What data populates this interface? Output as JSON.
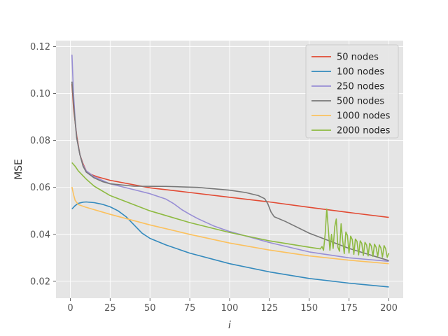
{
  "chart_data": {
    "type": "line",
    "title": "",
    "xlabel": "i",
    "ylabel": "MSE",
    "xlim": [
      -9,
      209
    ],
    "ylim": [
      0.0128,
      0.1225
    ],
    "xticks": [
      0,
      25,
      50,
      75,
      100,
      125,
      150,
      175,
      200
    ],
    "yticks": [
      0.02,
      0.04,
      0.06,
      0.08,
      0.1,
      0.12
    ],
    "ytick_labels": [
      "0.02",
      "0.04",
      "0.06",
      "0.08",
      "0.10",
      "0.12"
    ],
    "grid": true,
    "legend_position": "top-right",
    "series": [
      {
        "name": "50 nodes",
        "color": "#E24A33",
        "points": [
          [
            1,
            0.104
          ],
          [
            2,
            0.094
          ],
          [
            4,
            0.082
          ],
          [
            6,
            0.074
          ],
          [
            8,
            0.07
          ],
          [
            10,
            0.067
          ],
          [
            13,
            0.0655
          ],
          [
            17,
            0.0645
          ],
          [
            25,
            0.063
          ],
          [
            50,
            0.0598
          ],
          [
            75,
            0.0578
          ],
          [
            100,
            0.0558
          ],
          [
            125,
            0.0538
          ],
          [
            150,
            0.0515
          ],
          [
            175,
            0.0493
          ],
          [
            200,
            0.0472
          ]
        ]
      },
      {
        "name": "100 nodes",
        "color": "#348ABD",
        "points": [
          [
            1,
            0.0508
          ],
          [
            3,
            0.0522
          ],
          [
            5,
            0.0532
          ],
          [
            8,
            0.0537
          ],
          [
            10,
            0.0538
          ],
          [
            15,
            0.0535
          ],
          [
            20,
            0.0528
          ],
          [
            25,
            0.0517
          ],
          [
            30,
            0.05
          ],
          [
            35,
            0.0475
          ],
          [
            40,
            0.044
          ],
          [
            45,
            0.0405
          ],
          [
            50,
            0.0383
          ],
          [
            60,
            0.0355
          ],
          [
            75,
            0.032
          ],
          [
            100,
            0.0275
          ],
          [
            125,
            0.024
          ],
          [
            150,
            0.0212
          ],
          [
            175,
            0.0192
          ],
          [
            200,
            0.0176
          ]
        ]
      },
      {
        "name": "250 nodes",
        "color": "#988ED5",
        "points": [
          [
            1,
            0.1165
          ],
          [
            2,
            0.1
          ],
          [
            3,
            0.089
          ],
          [
            4,
            0.081
          ],
          [
            6,
            0.074
          ],
          [
            8,
            0.0695
          ],
          [
            10,
            0.067
          ],
          [
            15,
            0.0645
          ],
          [
            20,
            0.063
          ],
          [
            25,
            0.0615
          ],
          [
            40,
            0.059
          ],
          [
            50,
            0.0573
          ],
          [
            60,
            0.055
          ],
          [
            65,
            0.053
          ],
          [
            70,
            0.0505
          ],
          [
            75,
            0.0485
          ],
          [
            80,
            0.0467
          ],
          [
            90,
            0.0436
          ],
          [
            100,
            0.0412
          ],
          [
            125,
            0.0365
          ],
          [
            150,
            0.0325
          ],
          [
            175,
            0.03
          ],
          [
            200,
            0.0285
          ]
        ]
      },
      {
        "name": "500 nodes",
        "color": "#777777",
        "points": [
          [
            1,
            0.105
          ],
          [
            2,
            0.096
          ],
          [
            3,
            0.088
          ],
          [
            4,
            0.081
          ],
          [
            6,
            0.074
          ],
          [
            8,
            0.069
          ],
          [
            10,
            0.0665
          ],
          [
            15,
            0.064
          ],
          [
            20,
            0.0625
          ],
          [
            25,
            0.0615
          ],
          [
            40,
            0.0605
          ],
          [
            60,
            0.0604
          ],
          [
            80,
            0.06
          ],
          [
            100,
            0.0588
          ],
          [
            110,
            0.0578
          ],
          [
            118,
            0.0565
          ],
          [
            122,
            0.0552
          ],
          [
            124,
            0.053
          ],
          [
            126,
            0.0495
          ],
          [
            128,
            0.0475
          ],
          [
            135,
            0.0455
          ],
          [
            150,
            0.0405
          ],
          [
            175,
            0.034
          ],
          [
            200,
            0.0288
          ]
        ]
      },
      {
        "name": "1000 nodes",
        "color": "#FBC15E",
        "points": [
          [
            1,
            0.0602
          ],
          [
            2,
            0.057
          ],
          [
            3,
            0.0545
          ],
          [
            5,
            0.0527
          ],
          [
            10,
            0.0515
          ],
          [
            25,
            0.0485
          ],
          [
            50,
            0.044
          ],
          [
            75,
            0.04
          ],
          [
            100,
            0.0363
          ],
          [
            125,
            0.0333
          ],
          [
            150,
            0.0308
          ],
          [
            175,
            0.029
          ],
          [
            200,
            0.0275
          ]
        ]
      },
      {
        "name": "2000 nodes",
        "color": "#8EBA42",
        "points": [
          [
            1,
            0.0705
          ],
          [
            3,
            0.069
          ],
          [
            5,
            0.067
          ],
          [
            10,
            0.0635
          ],
          [
            15,
            0.0605
          ],
          [
            25,
            0.0565
          ],
          [
            50,
            0.05
          ],
          [
            75,
            0.045
          ],
          [
            100,
            0.0408
          ],
          [
            125,
            0.0372
          ],
          [
            150,
            0.0345
          ],
          [
            157,
            0.0338
          ],
          [
            158,
            0.0348
          ],
          [
            159,
            0.0332
          ],
          [
            160,
            0.04
          ],
          [
            161,
            0.0508
          ],
          [
            162,
            0.042
          ],
          [
            163,
            0.0332
          ],
          [
            164,
            0.04
          ],
          [
            165,
            0.034
          ],
          [
            166,
            0.0432
          ],
          [
            167,
            0.0465
          ],
          [
            168,
            0.0345
          ],
          [
            169,
            0.0328
          ],
          [
            170,
            0.0445
          ],
          [
            171,
            0.0375
          ],
          [
            172,
            0.0318
          ],
          [
            173,
            0.041
          ],
          [
            174,
            0.0395
          ],
          [
            175,
            0.032
          ],
          [
            176,
            0.0392
          ],
          [
            177,
            0.0378
          ],
          [
            178,
            0.0315
          ],
          [
            179,
            0.038
          ],
          [
            180,
            0.037
          ],
          [
            181,
            0.0312
          ],
          [
            182,
            0.0372
          ],
          [
            183,
            0.0362
          ],
          [
            184,
            0.031
          ],
          [
            185,
            0.0366
          ],
          [
            186,
            0.0355
          ],
          [
            187,
            0.0308
          ],
          [
            188,
            0.0362
          ],
          [
            189,
            0.035
          ],
          [
            190,
            0.0306
          ],
          [
            191,
            0.0358
          ],
          [
            192,
            0.0345
          ],
          [
            193,
            0.0305
          ],
          [
            194,
            0.0355
          ],
          [
            195,
            0.0342
          ],
          [
            196,
            0.0303
          ],
          [
            197,
            0.0352
          ],
          [
            198,
            0.0338
          ],
          [
            199,
            0.0302
          ],
          [
            200,
            0.032
          ]
        ]
      }
    ]
  }
}
